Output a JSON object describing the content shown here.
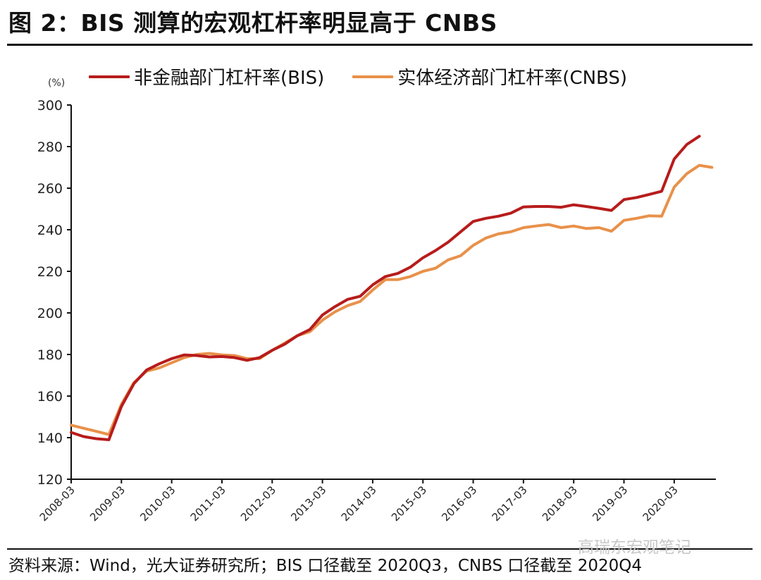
{
  "figure": {
    "title": "图 2：BIS 测算的宏观杠杆率明显高于 CNBS",
    "source": "资料来源：Wind，光大证券研究所；BIS 口径截至 2020Q3，CNBS 口径截至 2020Q4",
    "watermark": "高瑞东宏观笔记",
    "unit_label": "(%)"
  },
  "colors": {
    "bis": "#B71C1C",
    "cnbs": "#E8914A",
    "axis": "#111111"
  },
  "legend": [
    {
      "label": "非金融部门杠杆率(BIS)",
      "color": "#B71C1C"
    },
    {
      "label": "实体经济部门杠杆率(CNBS)",
      "color": "#E8914A"
    }
  ],
  "chart_data": {
    "type": "line",
    "title": "BIS 测算的宏观杠杆率明显高于 CNBS",
    "xlabel": "",
    "ylabel": "(%)",
    "ylim": [
      120,
      300
    ],
    "yticks": [
      120,
      140,
      160,
      180,
      200,
      220,
      240,
      260,
      280,
      300
    ],
    "xtick_labels": [
      "2008-03",
      "2009-03",
      "2010-03",
      "2011-03",
      "2012-03",
      "2013-03",
      "2014-03",
      "2015-03",
      "2016-03",
      "2017-03",
      "2018-03",
      "2019-03",
      "2020-03"
    ],
    "grid": false,
    "legend_position": "top",
    "x": [
      "2008Q1",
      "2008Q2",
      "2008Q3",
      "2008Q4",
      "2009Q1",
      "2009Q2",
      "2009Q3",
      "2009Q4",
      "2010Q1",
      "2010Q2",
      "2010Q3",
      "2010Q4",
      "2011Q1",
      "2011Q2",
      "2011Q3",
      "2011Q4",
      "2012Q1",
      "2012Q2",
      "2012Q3",
      "2012Q4",
      "2013Q1",
      "2013Q2",
      "2013Q3",
      "2013Q4",
      "2014Q1",
      "2014Q2",
      "2014Q3",
      "2014Q4",
      "2015Q1",
      "2015Q2",
      "2015Q3",
      "2015Q4",
      "2016Q1",
      "2016Q2",
      "2016Q3",
      "2016Q4",
      "2017Q1",
      "2017Q2",
      "2017Q3",
      "2017Q4",
      "2018Q1",
      "2018Q2",
      "2018Q3",
      "2018Q4",
      "2019Q1",
      "2019Q2",
      "2019Q3",
      "2019Q4",
      "2020Q1",
      "2020Q2",
      "2020Q3",
      "2020Q4"
    ],
    "series": [
      {
        "name": "非金融部门杠杆率(BIS)",
        "color": "#B71C1C",
        "values": [
          142.5,
          140.5,
          139.5,
          139.0,
          155.0,
          166.0,
          172.5,
          175.5,
          178.0,
          179.8,
          179.5,
          178.8,
          179.0,
          178.5,
          177.2,
          178.5,
          182.0,
          185.0,
          189.0,
          192.0,
          199.0,
          203.0,
          206.5,
          208.0,
          213.5,
          217.5,
          219.0,
          222.0,
          226.5,
          230.0,
          234.0,
          239.0,
          244.0,
          245.5,
          246.5,
          248.0,
          251.0,
          251.2,
          251.2,
          250.8,
          252.0,
          251.2,
          250.3,
          249.3,
          254.5,
          255.5,
          257.0,
          258.5,
          274.0,
          281.0,
          285.0
        ]
      },
      {
        "name": "实体经济部门杠杆率(CNBS)",
        "color": "#E8914A",
        "values": [
          146.0,
          144.5,
          143.0,
          141.5,
          156.0,
          166.5,
          172.0,
          173.5,
          176.0,
          178.5,
          180.0,
          180.5,
          179.8,
          179.5,
          178.0,
          178.0,
          182.0,
          185.5,
          189.0,
          191.0,
          196.5,
          200.5,
          203.5,
          205.5,
          211.0,
          216.0,
          216.0,
          217.5,
          220.0,
          221.5,
          225.5,
          227.5,
          232.5,
          236.0,
          238.0,
          239.0,
          241.0,
          241.8,
          242.5,
          241.0,
          241.8,
          240.6,
          241.0,
          239.3,
          244.5,
          245.5,
          246.7,
          246.5,
          260.5,
          267.0,
          271.0,
          270.0
        ]
      }
    ]
  }
}
